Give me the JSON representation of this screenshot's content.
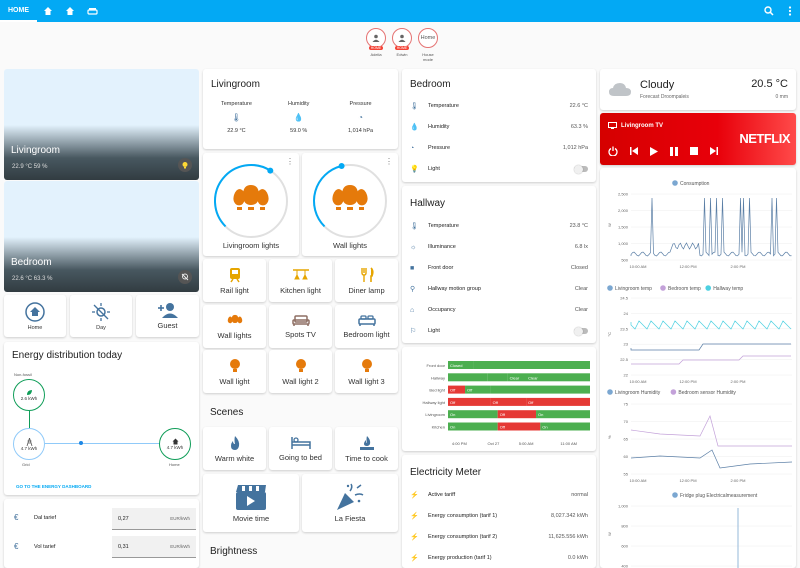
{
  "header": {
    "tab_home": "HOME",
    "search_icon": "search-icon",
    "menu_icon": "dots-vertical-icon"
  },
  "badges": [
    {
      "name": "Adelia",
      "tag": "HOME"
    },
    {
      "name": "Edwin",
      "tag": "HOME"
    },
    {
      "name": "House mode",
      "value": "Home"
    }
  ],
  "areas": [
    {
      "name": "Livingroom",
      "sensors": "22.9 °C   59 %"
    },
    {
      "name": "Bedroom",
      "sensors": "22.6 °C   63.3 %"
    }
  ],
  "shortcuts": [
    {
      "label": "Home"
    },
    {
      "label": "Day"
    },
    {
      "label": "Guest"
    }
  ],
  "energy": {
    "title": "Energy distribution today",
    "nonfossil_label": "Non-fossil",
    "nonfossil_value": "2.6 kWh",
    "grid_label": "Grid",
    "grid_value": "4.7 kWh",
    "home_label": "Home",
    "home_value": "4.7 kWh",
    "link": "GO TO THE ENERGY DASHBOARD"
  },
  "tariffs": [
    {
      "name": "Dal tarief",
      "value": "0,27",
      "unit": "EUR/kWh"
    },
    {
      "name": "Vol tarief",
      "value": "0,31",
      "unit": "EUR/kWh"
    }
  ],
  "livingroom": {
    "title": "Livingroom",
    "sensors": [
      {
        "label": "Temperature",
        "value": "22.9 °C"
      },
      {
        "label": "Humidity",
        "value": "59.0 %"
      },
      {
        "label": "Pressure",
        "value": "1,014 hPa"
      }
    ],
    "lights": [
      {
        "label": "Livingroom lights",
        "level": 0.62
      },
      {
        "label": "Wall lights",
        "level": 0.45
      }
    ]
  },
  "buttons": [
    {
      "label": "Rail light"
    },
    {
      "label": "Kitchen light"
    },
    {
      "label": "Diner lamp"
    },
    {
      "label": "Wall lights"
    },
    {
      "label": "Spots TV"
    },
    {
      "label": "Bedroom light"
    },
    {
      "label": "Wall light"
    },
    {
      "label": "Wall light 2"
    },
    {
      "label": "Wall light 3"
    }
  ],
  "scenes": {
    "title": "Scenes",
    "items": [
      {
        "label": "Warm white"
      },
      {
        "label": "Going to bed"
      },
      {
        "label": "Time to cook"
      },
      {
        "label": "Movie time"
      },
      {
        "label": "La Fiesta"
      }
    ]
  },
  "brightness": {
    "title": "Brightness"
  },
  "bedroom": {
    "title": "Bedroom",
    "rows": [
      {
        "label": "Temperature",
        "value": "22.6 °C"
      },
      {
        "label": "Humidity",
        "value": "63.3 %"
      },
      {
        "label": "Pressure",
        "value": "1,012 hPa"
      },
      {
        "label": "Light",
        "value": ""
      }
    ]
  },
  "hallway": {
    "title": "Hallway",
    "rows": [
      {
        "label": "Temperature",
        "value": "23.8 °C"
      },
      {
        "label": "Illuminance",
        "value": "6.8 lx"
      },
      {
        "label": "Front door",
        "value": "Closed"
      },
      {
        "label": "Hallway motion group",
        "value": "Clear"
      },
      {
        "label": "Occupancy",
        "value": "Clear"
      },
      {
        "label": "Light",
        "value": ""
      }
    ]
  },
  "timeline": {
    "rows": [
      {
        "label": "Front door",
        "segments": [
          {
            "text": "Closed"
          },
          {
            "text": "Closed"
          }
        ]
      },
      {
        "label": "Hallway",
        "segments": [
          {
            "text": "Clear"
          },
          {
            "text": "Clear"
          }
        ]
      },
      {
        "label": "Bed light",
        "segments": [
          {
            "text": "Off"
          },
          {
            "text": "Off"
          }
        ]
      },
      {
        "label": "Hallway light",
        "segments": [
          {
            "text": "Off"
          },
          {
            "text": "Off"
          },
          {
            "text": "Off"
          }
        ]
      },
      {
        "label": "Livingroom",
        "segments": [
          {
            "text": "On"
          },
          {
            "text": "Off"
          },
          {
            "text": "On"
          }
        ]
      },
      {
        "label": "Kitchen",
        "segments": [
          {
            "text": "On"
          },
          {
            "text": "Off"
          },
          {
            "text": "On"
          }
        ]
      }
    ],
    "ticks": [
      "4:00 PM",
      "Oct 27",
      "5:00 AM",
      "11:00 AM"
    ]
  },
  "electricity": {
    "title": "Electricity Meter",
    "rows": [
      {
        "label": "Active tariff",
        "value": "normal"
      },
      {
        "label": "Energy consumption (tarif 1)",
        "value": "8,027.342 kWh"
      },
      {
        "label": "Energy consumption (tarif 2)",
        "value": "11,625.556 kWh"
      },
      {
        "label": "Energy production (tarif 1)",
        "value": "0.0 kWh"
      }
    ]
  },
  "weather": {
    "condition": "Cloudy",
    "forecast": "Forecast Droompaleis",
    "temperature": "20.5 °C",
    "precip": "0 mm"
  },
  "media": {
    "name": "Livingroom TV",
    "logo": "NETFLIX"
  },
  "charts": {
    "consumption": {
      "legend": "Consumption",
      "unit": "W",
      "yticks": [
        "2,500",
        "2,000",
        "1,500",
        "1,000",
        "500"
      ],
      "xticks": [
        "10:00 AM",
        "12:00 PM",
        "2:00 PM"
      ]
    },
    "temps": {
      "legend": [
        "Livingroom temp",
        "Bedroom temp",
        "Hallway temp"
      ],
      "unit": "°C",
      "yticks": [
        "24.5",
        "24",
        "23.5",
        "23",
        "22.5",
        "22"
      ],
      "xticks": [
        "10:00 AM",
        "12:00 PM",
        "2:00 PM"
      ]
    },
    "humidity": {
      "legend": [
        "Livingroom Humidity",
        "Bedroom sensor Humidity"
      ],
      "unit": "%",
      "yticks": [
        "75",
        "70",
        "65",
        "60",
        "55"
      ],
      "xticks": [
        "10:00 AM",
        "12:00 PM",
        "2:00 PM"
      ]
    },
    "fridge": {
      "legend": "Fridge plug Electricalmeasurement",
      "unit": "W",
      "yticks": [
        "1,000",
        "800",
        "600",
        "400"
      ]
    }
  }
}
